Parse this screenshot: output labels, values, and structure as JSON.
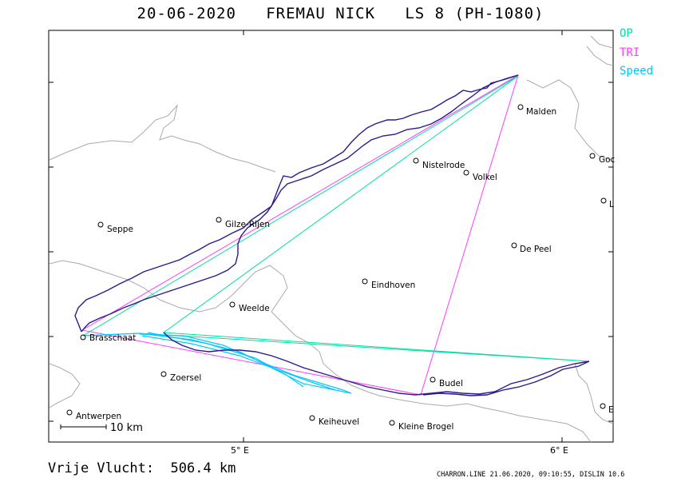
{
  "title": "20-06-2020   FREMAU NICK   LS 8 (PH-1080)",
  "legend": {
    "op": "OP",
    "tri": "TRI",
    "speed": "Speed"
  },
  "colors": {
    "op": "#00e0a0",
    "tri": "#ff3cff",
    "speed": "#00c8ff",
    "track": "#2a1a8c",
    "coast": "#aaaaaa"
  },
  "places": {
    "malden": "Malden",
    "goch": "Goc",
    "l_town": "L",
    "nistelrode": "Nistelrode",
    "volkel": "Volkel",
    "seppe": "Seppe",
    "gilze_rijen": "Gilze-Rijen",
    "de_peel": "De Peel",
    "eindhoven": "Eindhoven",
    "weelde": "Weelde",
    "brasschaat": "Brasschaat",
    "zoersel": "Zoersel",
    "budel": "Budel",
    "antwerpen": "Antwerpen",
    "keiheuvel": "Keiheuvel",
    "kleine_brogel": "Kleine Brogel",
    "e_town": "E"
  },
  "axis": {
    "lon_5": "5° E",
    "lon_6": "6° E"
  },
  "scale_label": "10 km",
  "distance": "Vrije Vlucht:  506.4 km",
  "footer": "CHARRON.LINE 21.06.2020, 09:10:55, DISLIN 10.6"
}
